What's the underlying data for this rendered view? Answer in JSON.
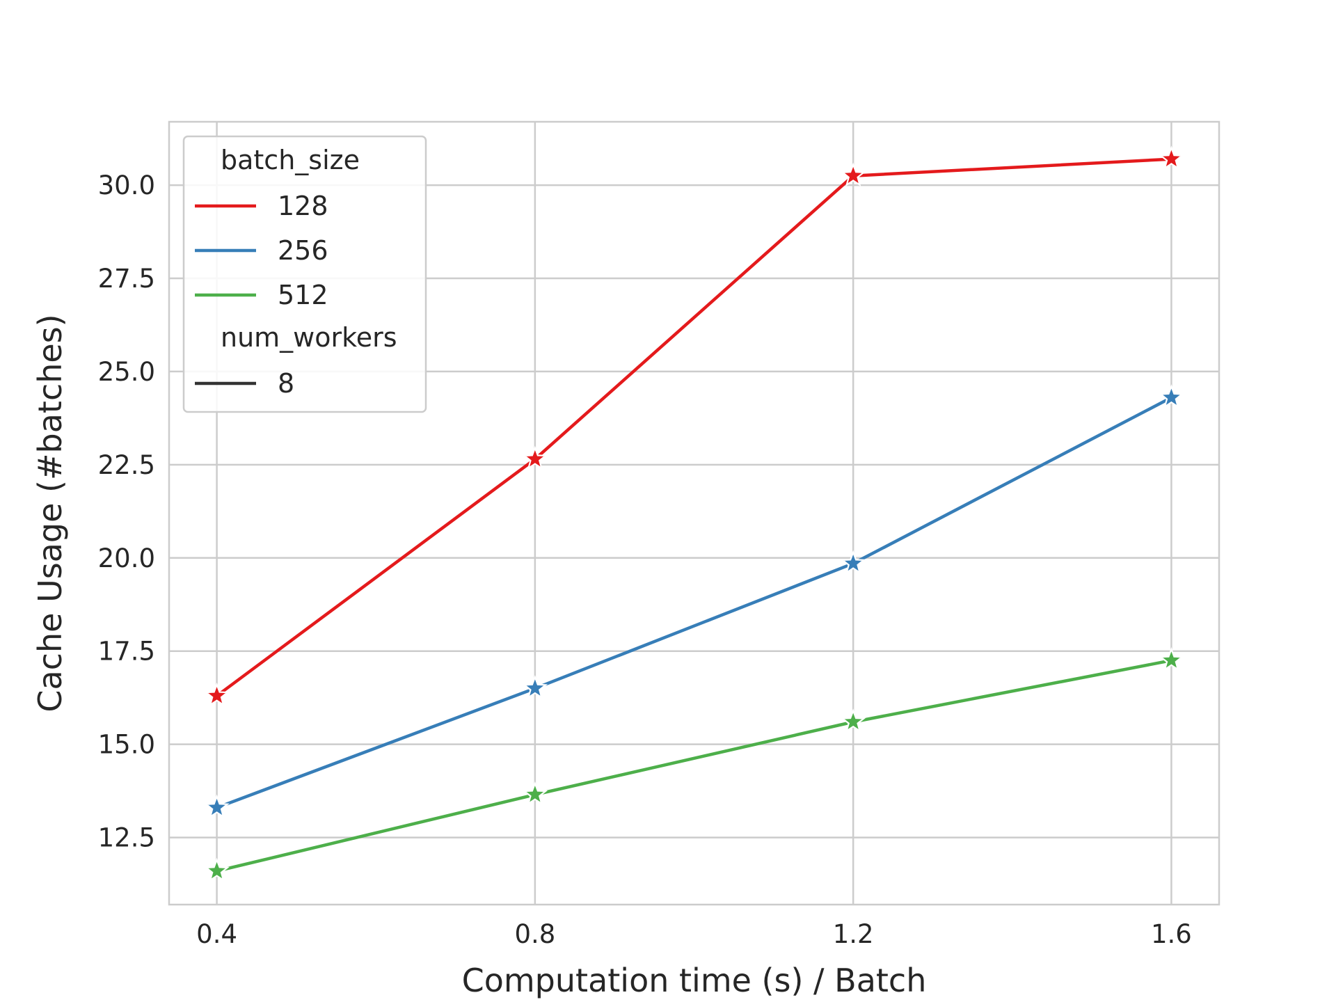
{
  "chart_data": {
    "type": "line",
    "title": "",
    "xlabel": "Computation time (s) / Batch",
    "ylabel": "Cache Usage (#batches)",
    "x": [
      0.4,
      0.8,
      1.2,
      1.6
    ],
    "x_tick_labels": [
      "0.4",
      "0.8",
      "1.2",
      "1.6"
    ],
    "y_ticks": [
      12.5,
      15.0,
      17.5,
      20.0,
      22.5,
      25.0,
      27.5,
      30.0
    ],
    "y_tick_labels": [
      "12.5",
      "15.0",
      "17.5",
      "20.0",
      "22.5",
      "25.0",
      "27.5",
      "30.0"
    ],
    "xlim": [
      0.34,
      1.66
    ],
    "ylim": [
      10.7,
      31.7
    ],
    "grid": true,
    "marker": "star",
    "legend_position": "top-left",
    "legend": {
      "hue_title": "batch_size",
      "style_title": "num_workers",
      "style_entries": [
        {
          "label": "8",
          "color": "#333333"
        }
      ]
    },
    "series": [
      {
        "name": "128",
        "color": "#e41a1c",
        "values": [
          16.3,
          22.65,
          30.25,
          30.7
        ]
      },
      {
        "name": "256",
        "color": "#377eb8",
        "values": [
          13.3,
          16.5,
          19.85,
          24.3
        ]
      },
      {
        "name": "512",
        "color": "#4daf4a",
        "values": [
          11.6,
          13.65,
          15.6,
          17.25
        ]
      }
    ]
  }
}
